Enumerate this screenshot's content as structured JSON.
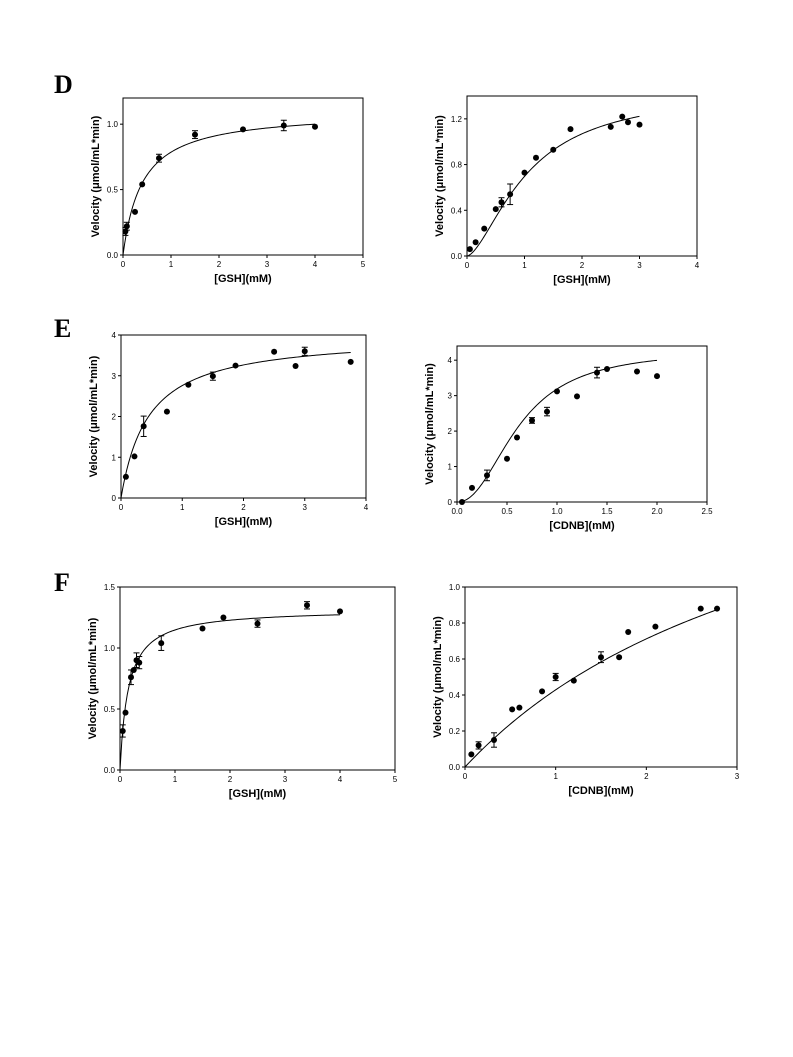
{
  "panels": [
    {
      "letter": "D"
    },
    {
      "letter": "E"
    },
    {
      "letter": "F"
    }
  ],
  "chart_data": [
    {
      "panel": "D",
      "type": "scatter",
      "fit": "michaelis-menten",
      "xlabel": "[GSH](mM)",
      "ylabel": "Velocity (μmol/mL*min)",
      "xlim": [
        0,
        5
      ],
      "ylim": [
        0,
        1.2
      ],
      "xticks": [
        "0",
        "1",
        "2",
        "3",
        "4",
        "5"
      ],
      "xtick_values": [
        0,
        1,
        2,
        3,
        4,
        5
      ],
      "yticks": [
        "0.0",
        "0.5",
        "1.0"
      ],
      "ytick_values": [
        0,
        0.5,
        1.0
      ],
      "x": [
        0.05,
        0.08,
        0.25,
        0.4,
        0.75,
        1.5,
        2.5,
        3.35,
        4.0
      ],
      "y": [
        0.18,
        0.22,
        0.33,
        0.54,
        0.74,
        0.92,
        0.96,
        0.99,
        0.98
      ],
      "err": [
        0.03,
        0.03,
        0,
        0,
        0.03,
        0.03,
        0,
        0.04,
        0
      ],
      "fit_params": {
        "vmax": 1.1,
        "km": 0.4,
        "n": 1
      }
    },
    {
      "panel": "D",
      "type": "scatter",
      "fit": "hill",
      "xlabel": "[GSH](mM)",
      "ylabel": "Velocity (μmol/mL*min)",
      "xlim": [
        0,
        4
      ],
      "ylim": [
        0,
        1.4
      ],
      "xticks": [
        "0",
        "1",
        "2",
        "3",
        "4"
      ],
      "xtick_values": [
        0,
        1,
        2,
        3,
        4
      ],
      "yticks": [
        "0.0",
        "0.4",
        "0.8",
        "1.2"
      ],
      "ytick_values": [
        0,
        0.4,
        0.8,
        1.2
      ],
      "x": [
        0.05,
        0.15,
        0.3,
        0.5,
        0.6,
        0.75,
        1.0,
        1.2,
        1.5,
        1.8,
        2.5,
        2.7,
        2.8,
        3.0
      ],
      "y": [
        0.06,
        0.12,
        0.24,
        0.41,
        0.47,
        0.54,
        0.73,
        0.86,
        0.93,
        1.11,
        1.13,
        1.22,
        1.17,
        1.15
      ],
      "err": [
        0,
        0,
        0,
        0,
        0.04,
        0.09,
        0,
        0,
        0,
        0,
        0,
        0,
        0,
        0
      ],
      "fit_params": {
        "vmax": 1.45,
        "km": 1.05,
        "n": 1.6
      }
    },
    {
      "panel": "E",
      "type": "scatter",
      "fit": "michaelis-menten",
      "xlabel": "[GSH](mM)",
      "ylabel": "Velocity (μmol/mL*min)",
      "xlim": [
        0,
        4
      ],
      "ylim": [
        0,
        4
      ],
      "xticks": [
        "0",
        "1",
        "2",
        "3",
        "4"
      ],
      "xtick_values": [
        0,
        1,
        2,
        3,
        4
      ],
      "yticks": [
        "0",
        "1",
        "2",
        "3",
        "4"
      ],
      "ytick_values": [
        0,
        1,
        2,
        3,
        4
      ],
      "x": [
        0.08,
        0.22,
        0.37,
        0.75,
        1.1,
        1.5,
        1.87,
        2.5,
        2.85,
        3.0,
        3.75
      ],
      "y": [
        0.52,
        1.02,
        1.76,
        2.12,
        2.78,
        2.99,
        3.25,
        3.59,
        3.24,
        3.6,
        3.34
      ],
      "err": [
        0,
        0,
        0.25,
        0,
        0,
        0.1,
        0,
        0,
        0,
        0.1,
        0
      ],
      "fit_params": {
        "vmax": 4.0,
        "km": 0.45,
        "n": 1
      }
    },
    {
      "panel": "E",
      "type": "scatter",
      "fit": "hill",
      "xlabel": "[CDNB](mM)",
      "ylabel": "Velocity (μmol/mL*min)",
      "xlim": [
        0,
        2.5
      ],
      "ylim": [
        0,
        4.4
      ],
      "xticks": [
        "0.0",
        "0.5",
        "1.0",
        "1.5",
        "2.0",
        "2.5"
      ],
      "xtick_values": [
        0,
        0.5,
        1.0,
        1.5,
        2.0,
        2.5
      ],
      "yticks": [
        "0",
        "1",
        "2",
        "3",
        "4"
      ],
      "ytick_values": [
        0,
        1,
        2,
        3,
        4
      ],
      "x": [
        0.05,
        0.15,
        0.3,
        0.5,
        0.6,
        0.75,
        0.9,
        1.0,
        1.2,
        1.4,
        1.5,
        1.8,
        2.0
      ],
      "y": [
        0.0,
        0.4,
        0.75,
        1.22,
        1.82,
        2.3,
        2.55,
        3.12,
        2.98,
        3.65,
        3.75,
        3.68,
        3.55
      ],
      "err": [
        0,
        0,
        0.15,
        0,
        0,
        0.08,
        0.12,
        0,
        0,
        0.15,
        0,
        0,
        0
      ],
      "fit_params": {
        "vmax": 4.3,
        "km": 0.62,
        "n": 2.2
      }
    },
    {
      "panel": "F",
      "type": "scatter",
      "fit": "michaelis-menten",
      "xlabel": "[GSH](mM)",
      "ylabel": "Velocity (μmol/mL*min)",
      "xlim": [
        0,
        5
      ],
      "ylim": [
        0,
        1.5
      ],
      "xticks": [
        "0",
        "1",
        "2",
        "3",
        "4",
        "5"
      ],
      "xtick_values": [
        0,
        1,
        2,
        3,
        4,
        5
      ],
      "yticks": [
        "0.0",
        "0.5",
        "1.0",
        "1.5"
      ],
      "ytick_values": [
        0,
        0.5,
        1.0,
        1.5
      ],
      "x": [
        0.05,
        0.1,
        0.2,
        0.25,
        0.3,
        0.35,
        0.75,
        1.5,
        1.88,
        2.5,
        3.4,
        4.0
      ],
      "y": [
        0.32,
        0.47,
        0.76,
        0.82,
        0.9,
        0.88,
        1.04,
        1.16,
        1.25,
        1.2,
        1.35,
        1.3
      ],
      "err": [
        0.05,
        0,
        0.06,
        0,
        0.06,
        0.05,
        0.06,
        0,
        0,
        0.03,
        0.03,
        0
      ],
      "fit_params": {
        "vmax": 1.32,
        "km": 0.15,
        "n": 1
      }
    },
    {
      "panel": "F",
      "type": "scatter",
      "fit": "michaelis-menten",
      "xlabel": "[CDNB](mM)",
      "ylabel": "Velocity (μmol/mL*min)",
      "xlim": [
        0,
        3
      ],
      "ylim": [
        0,
        1.0
      ],
      "xticks": [
        "0",
        "1",
        "2",
        "3"
      ],
      "xtick_values": [
        0,
        1,
        2,
        3
      ],
      "yticks": [
        "0.0",
        "0.2",
        "0.4",
        "0.6",
        "0.8",
        "1.0"
      ],
      "ytick_values": [
        0,
        0.2,
        0.4,
        0.6,
        0.8,
        1.0
      ],
      "x": [
        0.07,
        0.15,
        0.32,
        0.52,
        0.6,
        0.85,
        1.0,
        1.2,
        1.5,
        1.7,
        1.8,
        2.1,
        2.6,
        2.78
      ],
      "y": [
        0.07,
        0.12,
        0.15,
        0.32,
        0.33,
        0.42,
        0.5,
        0.48,
        0.61,
        0.61,
        0.75,
        0.78,
        0.88,
        0.88
      ],
      "err": [
        0,
        0.02,
        0.04,
        0,
        0,
        0,
        0.02,
        0,
        0.03,
        0,
        0,
        0,
        0,
        0
      ],
      "fit_params": {
        "vmax": 2.1,
        "km": 3.9,
        "n": 1
      }
    }
  ]
}
